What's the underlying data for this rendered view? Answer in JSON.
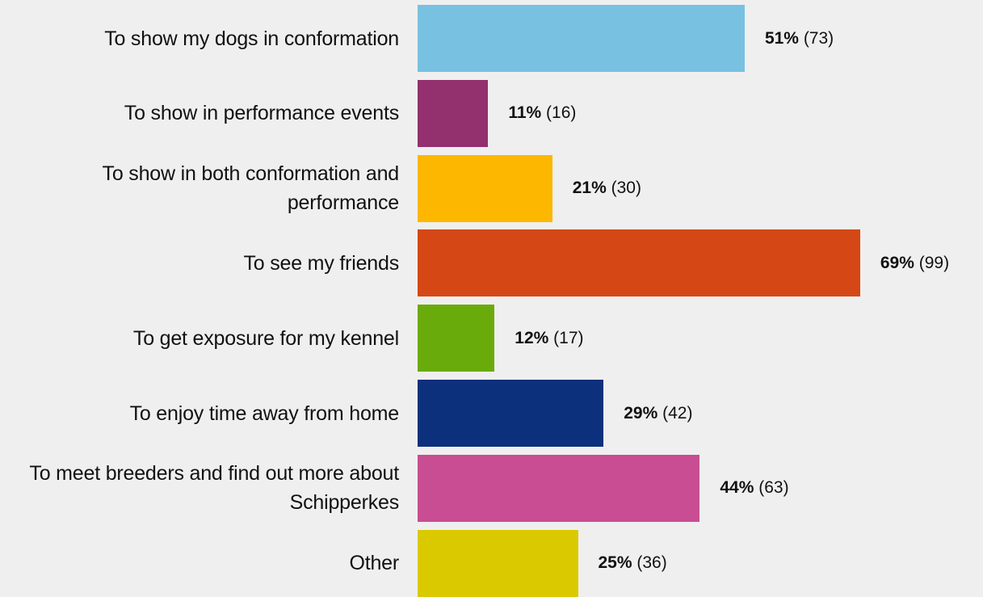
{
  "chart_data": {
    "type": "bar",
    "orientation": "horizontal",
    "categories": [
      "To show my dogs in conformation",
      "To show in performance events",
      "To show in both conformation and performance",
      "To see my friends",
      "To get exposure for my kennel",
      "To enjoy time away from home",
      "To meet breeders and find out more about Schipperkes",
      "Other"
    ],
    "values": [
      51,
      11,
      21,
      69,
      12,
      29,
      44,
      25
    ],
    "value_labels": [
      "51%",
      "11%",
      "21%",
      "69%",
      "12%",
      "29%",
      "44%",
      "25%"
    ],
    "counts": [
      73,
      16,
      30,
      99,
      17,
      42,
      63,
      36
    ],
    "count_labels": [
      "(73)",
      "(16)",
      "(30)",
      "(99)",
      "(17)",
      "(42)",
      "(63)",
      "(36)"
    ],
    "colors": [
      "#78c1e1",
      "#93306e",
      "#fdb700",
      "#d54816",
      "#6aab0c",
      "#0d307c",
      "#c84d92",
      "#dbc900"
    ]
  }
}
